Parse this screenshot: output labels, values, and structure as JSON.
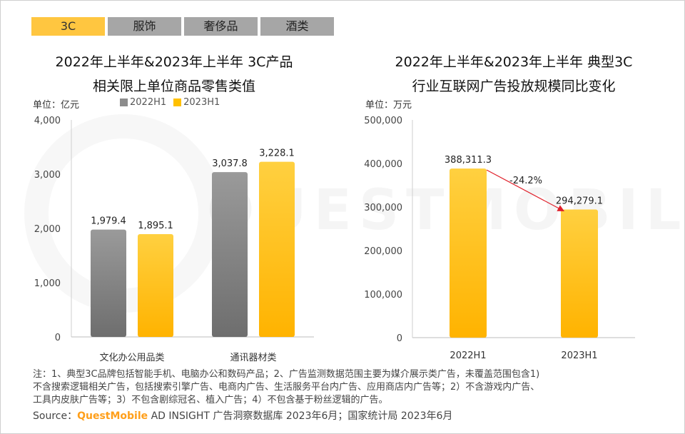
{
  "tabs": [
    {
      "label": "3C",
      "active": true
    },
    {
      "label": "服饰",
      "active": false
    },
    {
      "label": "奢侈品",
      "active": false
    },
    {
      "label": "酒类",
      "active": false
    }
  ],
  "watermark": "QUESTMOBILE",
  "left": {
    "title_line1": "2022年上半年&2023年上半年 3C产品",
    "title_line2": "相关限上单位商品零售类值",
    "unit": "单位：亿元",
    "legend": [
      "2022H1",
      "2023H1"
    ]
  },
  "right": {
    "title_line1": "2022年上半年&2023年上半年 典型3C",
    "title_line2": "行业互联网广告投放规模同比变化",
    "unit": "单位：万元"
  },
  "colors": {
    "gray": "#8c8c8c",
    "yellow": "#ffc000",
    "arrow": "#e0202a",
    "accent_tab": "#ffc640"
  },
  "chart_data": [
    {
      "type": "bar",
      "title": "2022年上半年&2023年上半年 3C产品相关限上单位商品零售类值",
      "ylabel": "单位：亿元",
      "categories": [
        "文化办公用品类",
        "通讯器材类"
      ],
      "series": [
        {
          "name": "2022H1",
          "values": [
            1979.4,
            3037.8
          ],
          "labels": [
            "1,979.4",
            "3,037.8"
          ]
        },
        {
          "name": "2023H1",
          "values": [
            1895.1,
            3228.1
          ],
          "labels": [
            "1,895.1",
            "3,228.1"
          ]
        }
      ],
      "yticks": [
        "0",
        "1,000",
        "2,000",
        "3,000",
        "4,000"
      ],
      "ylim": [
        0,
        4000
      ],
      "legend": "top"
    },
    {
      "type": "bar",
      "title": "2022年上半年&2023年上半年 典型3C行业互联网广告投放规模同比变化",
      "ylabel": "单位：万元",
      "categories": [
        "2022H1",
        "2023H1"
      ],
      "values": [
        388311.3,
        294279.1
      ],
      "labels": [
        "388,311.3",
        "294,279.1"
      ],
      "yticks": [
        "0",
        "100,000",
        "200,000",
        "300,000",
        "400,000",
        "500,000"
      ],
      "ylim": [
        0,
        500000
      ],
      "annotation": "-24.2%"
    }
  ],
  "notes": {
    "line1": "注：1、典型3C品牌包括智能手机、电脑办公和数码产品；2、广告监测数据范围主要为媒介展示类广告，未覆盖范围包含1)",
    "line2": "不含搜索逻辑相关广告，包括搜索引擎广告、电商内广告、生活服务平台内广告、应用商店内广告等；2）不含游戏内广告、",
    "line3": "工具内皮肤广告等；3）不包含剧综冠名、植入广告；4）不包含基于粉丝逻辑的广告。"
  },
  "source": {
    "prefix": "Source：",
    "brand": "QuestMobile",
    "rest": " AD INSIGHT 广告洞察数据库 2023年6月；国家统计局 2023年6月"
  }
}
